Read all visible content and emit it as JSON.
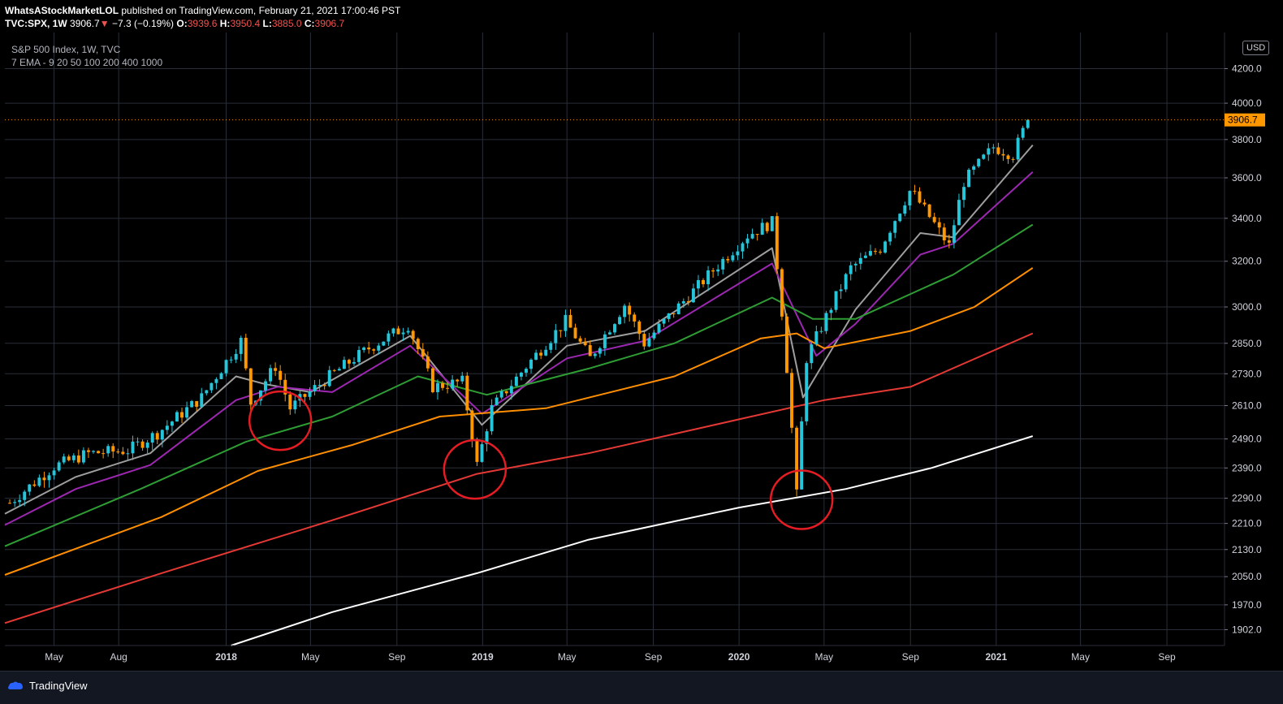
{
  "header": {
    "author": "WhatsAStockMarketLOL",
    "published_text": "published on TradingView.com, February 21, 2021 17:00:46 PST",
    "symbol": "TVC:SPX, 1W",
    "last": "3906.7",
    "change_arrow": "▼",
    "change": "−7.3 (−0.19%)",
    "open_label": "O:",
    "open": "3939.6",
    "high_label": "H:",
    "high": "3950.4",
    "low_label": "L:",
    "low": "3885.0",
    "close_label": "C:",
    "close": "3906.7"
  },
  "legend": {
    "title": "S&P 500 Index, 1W, TVC",
    "indicator": "7 EMA - 9 20 50 100 200 400 1000"
  },
  "axis": {
    "currency": "USD",
    "price_badge": "3906.7"
  },
  "footer": {
    "brand": "TradingView"
  },
  "chart_data": {
    "type": "candlestick",
    "scale": "log",
    "currency": "USD",
    "y_ticks": [
      1902.0,
      1970.0,
      2050.0,
      2130.0,
      2210.0,
      2290.0,
      2390.0,
      2490.0,
      2610.0,
      2730.0,
      2850.0,
      3000.0,
      3200.0,
      3400.0,
      3600.0,
      3800.0,
      4000.0,
      4200.0
    ],
    "x_ticks": [
      {
        "label": "May",
        "date": "2017-05-01",
        "bold": false
      },
      {
        "label": "Aug",
        "date": "2017-08-01",
        "bold": false
      },
      {
        "label": "2018",
        "date": "2018-01-01",
        "bold": true
      },
      {
        "label": "May",
        "date": "2018-05-01",
        "bold": false
      },
      {
        "label": "Sep",
        "date": "2018-09-01",
        "bold": false
      },
      {
        "label": "2019",
        "date": "2019-01-01",
        "bold": true
      },
      {
        "label": "May",
        "date": "2019-05-01",
        "bold": false
      },
      {
        "label": "Sep",
        "date": "2019-09-01",
        "bold": false
      },
      {
        "label": "2020",
        "date": "2020-01-01",
        "bold": true
      },
      {
        "label": "May",
        "date": "2020-05-01",
        "bold": false
      },
      {
        "label": "Sep",
        "date": "2020-09-01",
        "bold": false
      },
      {
        "label": "2021",
        "date": "2021-01-01",
        "bold": true
      },
      {
        "label": "May",
        "date": "2021-05-01",
        "bold": false
      },
      {
        "label": "Sep",
        "date": "2021-09-01",
        "bold": false
      }
    ],
    "x_range": [
      "2017-02-20",
      "2021-11-22"
    ],
    "y_range": [
      1860.0,
      4420.0
    ],
    "last_price": 3906.7,
    "up_color": "#26c6da",
    "down_color": "#ff9800",
    "price_anchors": [
      [
        "2017-02-27",
        2275
      ],
      [
        "2017-05-01",
        2395
      ],
      [
        "2017-06-19",
        2440
      ],
      [
        "2017-08-14",
        2450
      ],
      [
        "2017-09-25",
        2510
      ],
      [
        "2017-11-27",
        2640
      ],
      [
        "2018-01-22",
        2860
      ],
      [
        "2018-02-05",
        2620
      ],
      [
        "2018-03-12",
        2760
      ],
      [
        "2018-04-02",
        2600
      ],
      [
        "2018-05-28",
        2720
      ],
      [
        "2018-07-23",
        2830
      ],
      [
        "2018-09-17",
        2925
      ],
      [
        "2018-10-22",
        2680
      ],
      [
        "2018-12-03",
        2700
      ],
      [
        "2018-12-24",
        2400
      ],
      [
        "2019-01-14",
        2600
      ],
      [
        "2019-04-29",
        2940
      ],
      [
        "2019-06-03",
        2790
      ],
      [
        "2019-07-22",
        3010
      ],
      [
        "2019-08-19",
        2850
      ],
      [
        "2019-11-04",
        3090
      ],
      [
        "2020-01-13",
        3320
      ],
      [
        "2020-02-17",
        3380
      ],
      [
        "2020-03-02",
        2980
      ],
      [
        "2020-03-23",
        2300
      ],
      [
        "2020-04-06",
        2790
      ],
      [
        "2020-06-08",
        3170
      ],
      [
        "2020-07-20",
        3260
      ],
      [
        "2020-09-01",
        3540
      ],
      [
        "2020-10-26",
        3270
      ],
      [
        "2020-11-16",
        3580
      ],
      [
        "2020-12-28",
        3760
      ],
      [
        "2021-01-25",
        3720
      ],
      [
        "2021-02-15",
        3906.7
      ]
    ],
    "ema_lines": [
      {
        "color": "#9e9e9e",
        "points": [
          [
            "2017-02-20",
            2240
          ],
          [
            "2017-06-01",
            2360
          ],
          [
            "2017-09-15",
            2440
          ],
          [
            "2018-01-15",
            2720
          ],
          [
            "2018-02-26",
            2690
          ],
          [
            "2018-05-01",
            2660
          ],
          [
            "2018-09-20",
            2880
          ],
          [
            "2018-12-31",
            2540
          ],
          [
            "2019-05-01",
            2840
          ],
          [
            "2019-08-20",
            2900
          ],
          [
            "2020-02-17",
            3260
          ],
          [
            "2020-04-01",
            2640
          ],
          [
            "2020-06-15",
            2990
          ],
          [
            "2020-09-15",
            3330
          ],
          [
            "2020-11-01",
            3310
          ],
          [
            "2021-02-22",
            3770
          ]
        ]
      },
      {
        "color": "#9c27b0",
        "points": [
          [
            "2017-02-20",
            2205
          ],
          [
            "2017-06-01",
            2320
          ],
          [
            "2017-09-15",
            2400
          ],
          [
            "2018-01-15",
            2630
          ],
          [
            "2018-03-15",
            2680
          ],
          [
            "2018-06-01",
            2660
          ],
          [
            "2018-09-20",
            2840
          ],
          [
            "2018-12-31",
            2580
          ],
          [
            "2019-05-01",
            2790
          ],
          [
            "2019-08-20",
            2860
          ],
          [
            "2020-02-17",
            3190
          ],
          [
            "2020-04-20",
            2800
          ],
          [
            "2020-06-15",
            2930
          ],
          [
            "2020-09-15",
            3230
          ],
          [
            "2020-11-01",
            3280
          ],
          [
            "2021-02-22",
            3630
          ]
        ]
      },
      {
        "color": "#2e9e34",
        "points": [
          [
            "2017-02-20",
            2140
          ],
          [
            "2017-09-01",
            2320
          ],
          [
            "2018-01-29",
            2480
          ],
          [
            "2018-06-01",
            2570
          ],
          [
            "2018-10-01",
            2720
          ],
          [
            "2019-01-07",
            2650
          ],
          [
            "2019-06-01",
            2750
          ],
          [
            "2019-10-01",
            2850
          ],
          [
            "2020-02-17",
            3040
          ],
          [
            "2020-04-15",
            2950
          ],
          [
            "2020-06-15",
            2950
          ],
          [
            "2020-11-01",
            3140
          ],
          [
            "2021-02-22",
            3370
          ]
        ]
      },
      {
        "color": "#ff8f00",
        "points": [
          [
            "2017-02-20",
            2055
          ],
          [
            "2017-10-01",
            2230
          ],
          [
            "2018-02-15",
            2380
          ],
          [
            "2018-07-01",
            2470
          ],
          [
            "2018-11-01",
            2570
          ],
          [
            "2019-04-01",
            2600
          ],
          [
            "2019-10-01",
            2720
          ],
          [
            "2020-02-01",
            2870
          ],
          [
            "2020-03-23",
            2890
          ],
          [
            "2020-05-01",
            2830
          ],
          [
            "2020-09-01",
            2900
          ],
          [
            "2020-12-01",
            3000
          ],
          [
            "2021-02-22",
            3170
          ]
        ]
      },
      {
        "color": "#e53935",
        "points": [
          [
            "2017-02-20",
            1920
          ],
          [
            "2017-10-01",
            2060
          ],
          [
            "2018-06-01",
            2220
          ],
          [
            "2018-12-24",
            2370
          ],
          [
            "2019-06-01",
            2440
          ],
          [
            "2020-01-01",
            2560
          ],
          [
            "2020-05-01",
            2630
          ],
          [
            "2020-09-01",
            2680
          ],
          [
            "2021-02-22",
            2890
          ]
        ]
      },
      {
        "color": "#ffffff",
        "points": [
          [
            "2018-01-08",
            1860
          ],
          [
            "2018-06-01",
            1950
          ],
          [
            "2018-12-24",
            2060
          ],
          [
            "2019-06-01",
            2160
          ],
          [
            "2020-01-01",
            2260
          ],
          [
            "2020-06-01",
            2320
          ],
          [
            "2020-10-01",
            2390
          ],
          [
            "2021-02-22",
            2500
          ]
        ]
      }
    ],
    "annotations": [
      {
        "shape": "circle",
        "color": "#e51c23",
        "date": "2018-03-19",
        "price": 2555
      },
      {
        "shape": "circle",
        "color": "#e51c23",
        "date": "2018-12-21",
        "price": 2385
      },
      {
        "shape": "circle",
        "color": "#e51c23",
        "date": "2020-03-30",
        "price": 2285
      }
    ]
  }
}
